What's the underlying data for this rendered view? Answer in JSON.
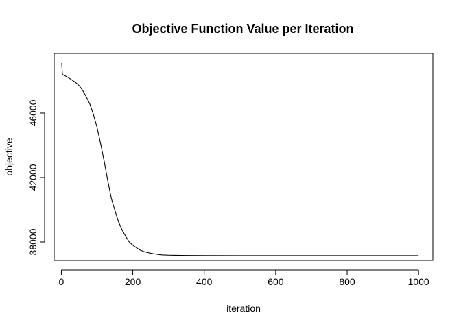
{
  "chart_data": {
    "type": "line",
    "title": "Objective Function Value per Iteration",
    "xlabel": "iteration",
    "ylabel": "objective",
    "xlim": [
      -20,
      1040
    ],
    "ylim": [
      36850,
      49700
    ],
    "x_ticks": [
      0,
      200,
      400,
      600,
      800,
      1000
    ],
    "y_ticks": [
      38000,
      42000,
      46000
    ],
    "grid": false,
    "legend": "none",
    "colors": {
      "line": "#000000",
      "axes": "#000000",
      "background": "#ffffff"
    },
    "series": [
      {
        "x": [
          1,
          3,
          10,
          20,
          30,
          40,
          50,
          60,
          70,
          80,
          90,
          100,
          110,
          120,
          130,
          140,
          150,
          160,
          170,
          180,
          190,
          200,
          210,
          220,
          230,
          240,
          250,
          260,
          280,
          300,
          320,
          350,
          400,
          500,
          600,
          700,
          800,
          900,
          1000
        ],
        "y": [
          49100,
          48400,
          48320,
          48200,
          48050,
          47900,
          47700,
          47400,
          47000,
          46550,
          45900,
          45100,
          44100,
          43000,
          41800,
          40700,
          39950,
          39250,
          38750,
          38350,
          38000,
          37800,
          37640,
          37500,
          37410,
          37350,
          37300,
          37260,
          37200,
          37180,
          37170,
          37160,
          37155,
          37150,
          37150,
          37150,
          37150,
          37150,
          37150
        ]
      }
    ]
  }
}
